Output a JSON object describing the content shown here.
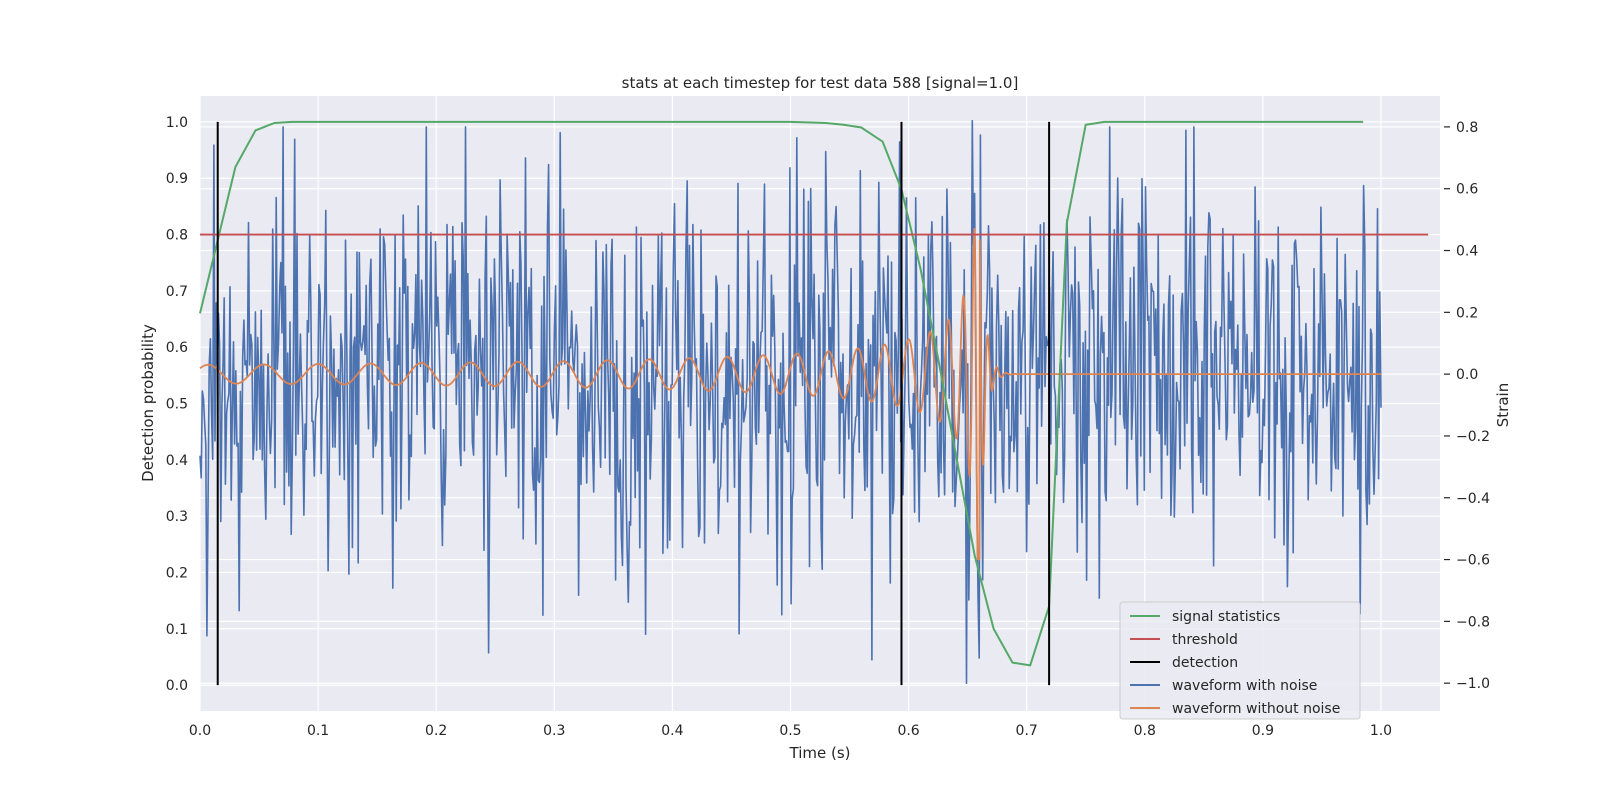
{
  "chart_data": {
    "type": "line",
    "title": "stats at each timestep for test data 588 [signal=1.0]",
    "xlabel": "Time (s)",
    "ylabel_left": "Detection probability",
    "ylabel_right": "Strain",
    "xlim": [
      0.0,
      1.05
    ],
    "ylim_left": [
      -0.046,
      1.046
    ],
    "ylim_right": [
      -1.09,
      0.9
    ],
    "x_ticks": [
      "0.0",
      "0.1",
      "0.2",
      "0.3",
      "0.4",
      "0.5",
      "0.6",
      "0.7",
      "0.8",
      "0.9",
      "1.0"
    ],
    "y_ticks_left": [
      "0.0",
      "0.1",
      "0.2",
      "0.3",
      "0.4",
      "0.5",
      "0.6",
      "0.7",
      "0.8",
      "0.9",
      "1.0"
    ],
    "y_ticks_right": [
      "−1.0",
      "−0.8",
      "−0.6",
      "−0.4",
      "−0.2",
      "0.0",
      "0.2",
      "0.4",
      "0.6",
      "0.8"
    ],
    "grid": true,
    "legend_position": "lower-right",
    "colors": {
      "signal": "#55a868",
      "threshold": "#c44e52",
      "detection": "#000000",
      "noisy": "#4c72b0",
      "clean": "#dd8452",
      "plot_background": "#eaeaf2",
      "grid": "#ffffff"
    },
    "series": [
      {
        "name": "signal statistics",
        "axis": "left",
        "x": [
          0.0,
          0.015,
          0.03,
          0.047,
          0.063,
          0.078,
          0.1,
          0.2,
          0.3,
          0.4,
          0.5,
          0.53,
          0.545,
          0.56,
          0.578,
          0.594,
          0.61,
          0.625,
          0.64,
          0.656,
          0.672,
          0.688,
          0.703,
          0.719,
          0.734,
          0.75,
          0.766,
          0.8,
          0.9,
          0.985
        ],
        "y": [
          0.66,
          0.79,
          0.92,
          0.985,
          0.998,
          1.0,
          1.0,
          1.0,
          1.0,
          1.0,
          1.0,
          0.998,
          0.995,
          0.99,
          0.965,
          0.88,
          0.74,
          0.58,
          0.41,
          0.23,
          0.1,
          0.04,
          0.035,
          0.14,
          0.82,
          0.995,
          1.0,
          1.0,
          1.0,
          1.0
        ]
      },
      {
        "name": "threshold",
        "axis": "left",
        "x": [
          0.0,
          1.04
        ],
        "y": [
          0.8,
          0.8
        ]
      },
      {
        "name": "detection",
        "axis": "left",
        "x": [
          0.015,
          0.594,
          0.719
        ],
        "y_range": [
          0.0,
          1.0
        ]
      },
      {
        "name": "waveform with noise",
        "axis": "right",
        "x_range": [
          0.0,
          1.0
        ],
        "n_points": 1024,
        "y_range": [
          -1.0,
          0.8
        ],
        "peaks": [
          {
            "x": 0.08,
            "y": 0.76
          },
          {
            "x": 0.29,
            "y": -0.78
          },
          {
            "x": 0.53,
            "y": 0.72
          },
          {
            "x": 0.649,
            "y": -1.0
          },
          {
            "x": 0.654,
            "y": 0.82
          },
          {
            "x": 0.985,
            "y": 0.61
          }
        ]
      },
      {
        "name": "waveform without noise",
        "axis": "right",
        "x_range": [
          0.0,
          1.0
        ],
        "y_range": [
          -0.58,
          0.61
        ],
        "merger_time": 0.66,
        "description_points": [
          {
            "x": 0.0,
            "y": 0.0
          },
          {
            "x": 0.57,
            "y": 0.17
          },
          {
            "x": 0.6,
            "y": 0.22
          },
          {
            "x": 0.633,
            "y": 0.37
          },
          {
            "x": 0.65,
            "y": -0.43
          },
          {
            "x": 0.654,
            "y": 0.53
          },
          {
            "x": 0.66,
            "y": -0.6
          },
          {
            "x": 0.664,
            "y": 0.61
          },
          {
            "x": 0.668,
            "y": -0.52
          },
          {
            "x": 0.68,
            "y": 0.0
          },
          {
            "x": 1.0,
            "y": 0.0
          }
        ]
      }
    ],
    "legend_entries": [
      "signal statistics",
      "threshold",
      "detection",
      "waveform with noise",
      "waveform without noise"
    ]
  }
}
